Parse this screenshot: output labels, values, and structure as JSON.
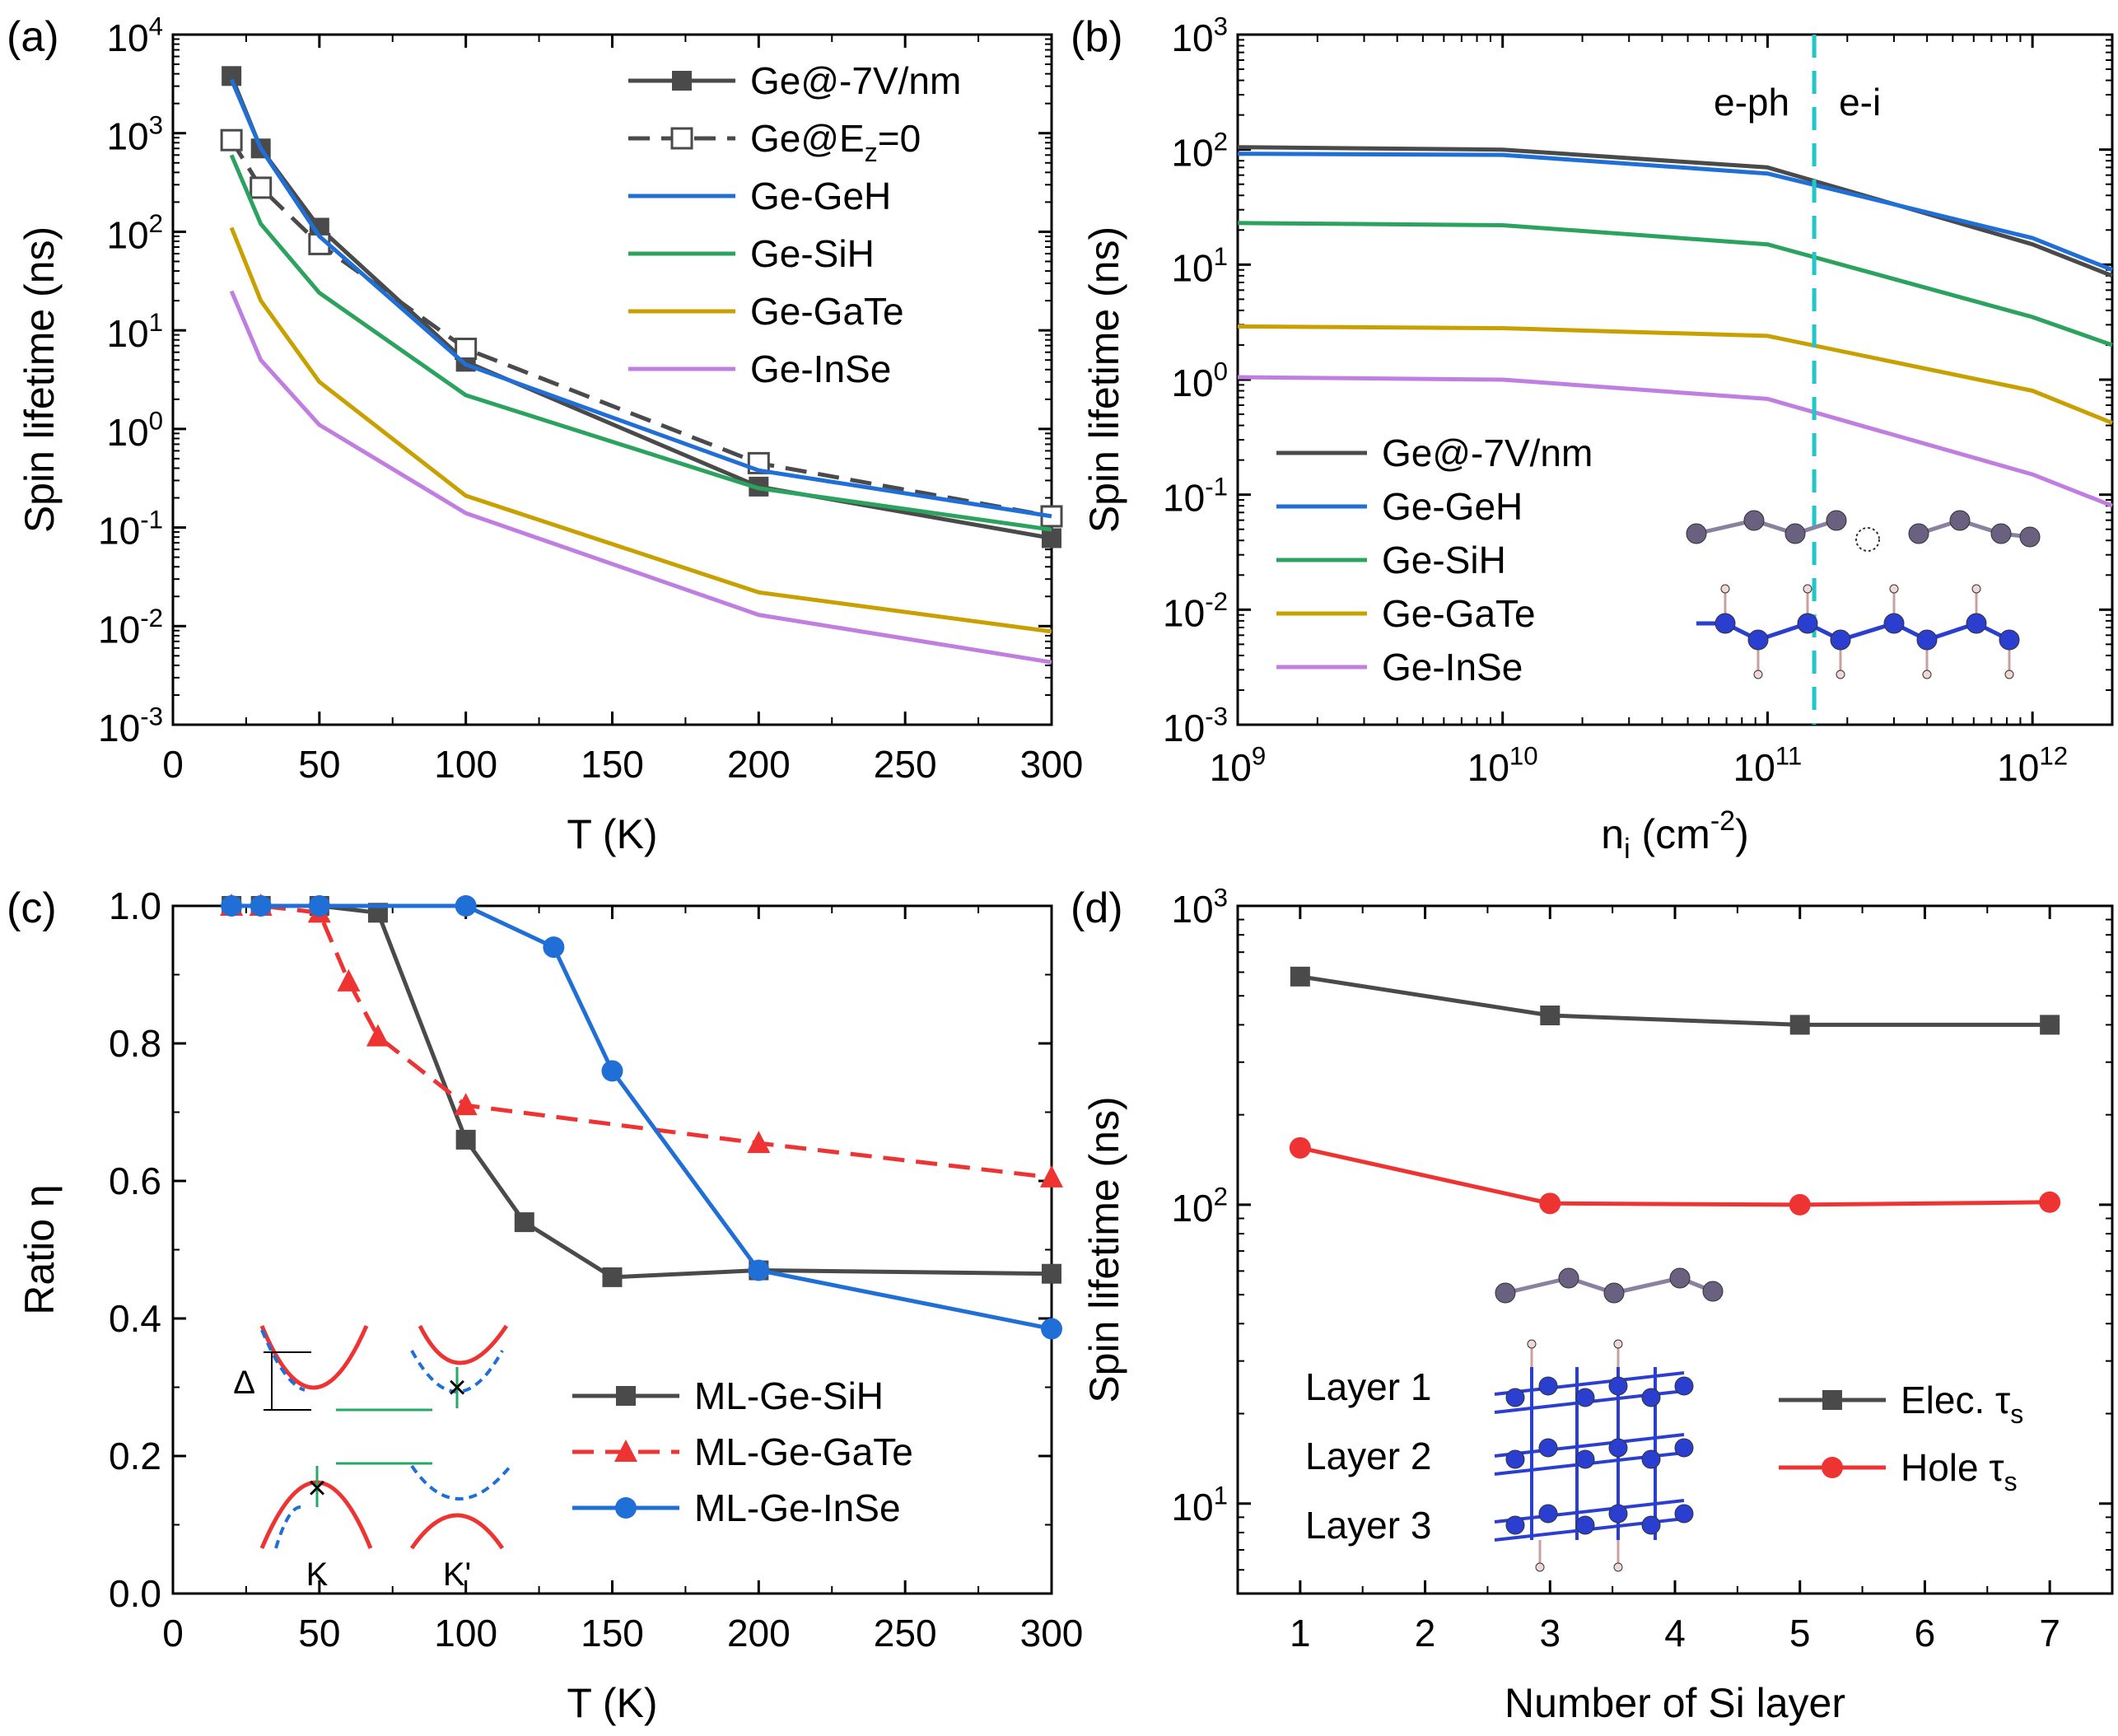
{
  "figure": {
    "panel_labels": [
      "(a)",
      "(b)",
      "(c)",
      "(d)"
    ]
  },
  "chart_data": [
    {
      "panel": "(a)",
      "type": "line",
      "xlabel": "T (K)",
      "ylabel": "Spin lifetime (ns)",
      "xscale": "linear",
      "yscale": "log",
      "xlim": [
        0,
        300
      ],
      "ylim": [
        0.001,
        10000
      ],
      "xticks": [
        0,
        50,
        100,
        150,
        200,
        250,
        300
      ],
      "xticklabels": [
        "0",
        "50",
        "100",
        "150",
        "200",
        "250",
        "300"
      ],
      "yticks": [
        0.001,
        0.01,
        0.1,
        1,
        10,
        100,
        1000,
        10000
      ],
      "yticklabels": [
        {
          "base": "10",
          "exp": "-3"
        },
        {
          "base": "10",
          "exp": "-2"
        },
        {
          "base": "10",
          "exp": "-1"
        },
        {
          "base": "10",
          "exp": "0"
        },
        {
          "base": "10",
          "exp": "1"
        },
        {
          "base": "10",
          "exp": "2"
        },
        {
          "base": "10",
          "exp": "3"
        },
        {
          "base": "10",
          "exp": "4"
        }
      ],
      "legend_position": "top-right",
      "series": [
        {
          "name": "Ge@-7V/nm",
          "color": "#4a4a4a",
          "dash": "solid",
          "marker": "square-filled",
          "x": [
            20,
            30,
            50,
            100,
            200,
            300
          ],
          "y": [
            3800,
            700,
            110,
            4.8,
            0.26,
            0.078
          ]
        },
        {
          "name": "Ge@E_z=0",
          "legend_base": "Ge@E",
          "legend_sub": "z",
          "legend_tail": "=0",
          "color": "#4a4a4a",
          "dash": "dashed",
          "marker": "square-open",
          "x": [
            20,
            30,
            50,
            100,
            200,
            300
          ],
          "y": [
            850,
            280,
            75,
            6.5,
            0.45,
            0.13
          ]
        },
        {
          "name": "Ge-GeH",
          "color": "#1f6fd6",
          "dash": "solid",
          "marker": "none",
          "x": [
            20,
            30,
            50,
            100,
            200,
            300
          ],
          "y": [
            3500,
            700,
            90,
            4.5,
            0.38,
            0.13
          ]
        },
        {
          "name": "Ge-SiH",
          "color": "#2ca25f",
          "dash": "solid",
          "marker": "none",
          "x": [
            20,
            30,
            50,
            100,
            200,
            300
          ],
          "y": [
            600,
            120,
            24,
            2.2,
            0.25,
            0.095
          ]
        },
        {
          "name": "Ge-GaTe",
          "color": "#c8a000",
          "dash": "solid",
          "marker": "none",
          "x": [
            20,
            30,
            50,
            100,
            200,
            300
          ],
          "y": [
            110,
            20,
            3,
            0.21,
            0.022,
            0.0088
          ]
        },
        {
          "name": "Ge-InSe",
          "color": "#c07ee0",
          "dash": "solid",
          "marker": "none",
          "x": [
            20,
            30,
            50,
            100,
            200,
            300
          ],
          "y": [
            25,
            5,
            1.1,
            0.14,
            0.013,
            0.0043
          ]
        }
      ]
    },
    {
      "panel": "(b)",
      "type": "line",
      "xlabel_base": "n",
      "xlabel_sub": "i",
      "xlabel_mid": " (cm",
      "xlabel_sup": "-2",
      "xlabel_tail": ")",
      "ylabel": "Spin lifetime (ns)",
      "xscale": "log",
      "yscale": "log",
      "xlim": [
        1000000000.0,
        2000000000000.0
      ],
      "ylim": [
        0.001,
        1000
      ],
      "xticks": [
        1000000000.0,
        10000000000.0,
        100000000000.0,
        1000000000000.0
      ],
      "xticklabels": [
        {
          "base": "10",
          "exp": "9"
        },
        {
          "base": "10",
          "exp": "10"
        },
        {
          "base": "10",
          "exp": "11"
        },
        {
          "base": "10",
          "exp": "12"
        }
      ],
      "yticks": [
        0.001,
        0.01,
        0.1,
        1,
        10,
        100,
        1000
      ],
      "yticklabels": [
        {
          "base": "10",
          "exp": "-3"
        },
        {
          "base": "10",
          "exp": "-2"
        },
        {
          "base": "10",
          "exp": "-1"
        },
        {
          "base": "10",
          "exp": "0"
        },
        {
          "base": "10",
          "exp": "1"
        },
        {
          "base": "10",
          "exp": "2"
        },
        {
          "base": "10",
          "exp": "3"
        }
      ],
      "vline_x": 150000000000.0,
      "annotations": [
        "e-ph",
        "e-i"
      ],
      "legend_position": "bottom-left",
      "series": [
        {
          "name": "Ge@-7V/nm",
          "color": "#4a4a4a",
          "x": [
            1000000000.0,
            10000000000.0,
            100000000000.0,
            1000000000000.0,
            2000000000000.0
          ],
          "y": [
            105,
            100,
            70,
            15,
            8
          ]
        },
        {
          "name": "Ge-GeH",
          "color": "#1f6fd6",
          "x": [
            1000000000.0,
            10000000000.0,
            100000000000.0,
            1000000000000.0,
            2000000000000.0
          ],
          "y": [
            92,
            90,
            62,
            17,
            9
          ]
        },
        {
          "name": "Ge-SiH",
          "color": "#2ca25f",
          "x": [
            1000000000.0,
            10000000000.0,
            100000000000.0,
            1000000000000.0,
            2000000000000.0
          ],
          "y": [
            23,
            22,
            15,
            3.5,
            2
          ]
        },
        {
          "name": "Ge-GaTe",
          "color": "#c8a000",
          "x": [
            1000000000.0,
            10000000000.0,
            100000000000.0,
            1000000000000.0,
            2000000000000.0
          ],
          "y": [
            2.9,
            2.8,
            2.4,
            0.8,
            0.42
          ]
        },
        {
          "name": "Ge-InSe",
          "color": "#c07ee0",
          "x": [
            1000000000.0,
            10000000000.0,
            100000000000.0,
            1000000000000.0,
            2000000000000.0
          ],
          "y": [
            1.05,
            1.0,
            0.68,
            0.15,
            0.08
          ]
        }
      ]
    },
    {
      "panel": "(c)",
      "type": "line",
      "xlabel": "T (K)",
      "ylabel": "Ratio η",
      "xscale": "linear",
      "yscale": "linear",
      "xlim": [
        0,
        300
      ],
      "ylim": [
        0,
        1.0
      ],
      "xticks": [
        0,
        50,
        100,
        150,
        200,
        250,
        300
      ],
      "xticklabels": [
        "0",
        "50",
        "100",
        "150",
        "200",
        "250",
        "300"
      ],
      "yticks": [
        0,
        0.2,
        0.4,
        0.6,
        0.8,
        1.0
      ],
      "yticklabels": [
        "0.0",
        "0.2",
        "0.4",
        "0.6",
        "0.8",
        "1.0"
      ],
      "legend_position": "bottom-right",
      "inset_labels": {
        "delta": "Δ",
        "k": "K",
        "kprime": "K'"
      },
      "series": [
        {
          "name": "ML-Ge-SiH",
          "color": "#4a4a4a",
          "dash": "solid",
          "marker": "square",
          "x": [
            20,
            30,
            50,
            70,
            100,
            120,
            150,
            200,
            300
          ],
          "y": [
            1.0,
            1.0,
            1.0,
            0.99,
            0.66,
            0.54,
            0.46,
            0.47,
            0.465
          ]
        },
        {
          "name": "ML-Ge-GaTe",
          "color": "#ee3333",
          "dash": "dashed",
          "marker": "triangle",
          "x": [
            20,
            30,
            50,
            60,
            70,
            100,
            200,
            300
          ],
          "y": [
            1.0,
            1.0,
            0.99,
            0.89,
            0.81,
            0.71,
            0.655,
            0.605
          ]
        },
        {
          "name": "ML-Ge-InSe",
          "color": "#1f6fd6",
          "dash": "solid",
          "marker": "circle",
          "x": [
            20,
            30,
            50,
            100,
            130,
            150,
            200,
            300
          ],
          "y": [
            1.0,
            1.0,
            1.0,
            1.0,
            0.94,
            0.76,
            0.47,
            0.385
          ]
        }
      ]
    },
    {
      "panel": "(d)",
      "type": "line",
      "xlabel": "Number of Si layer",
      "ylabel": "Spin lifetime (ns)",
      "xscale": "linear",
      "yscale": "log",
      "xlim": [
        0.5,
        7.5
      ],
      "ylim": [
        5,
        1000
      ],
      "xticks": [
        1,
        2,
        3,
        4,
        5,
        6,
        7
      ],
      "xticklabels": [
        "1",
        "2",
        "3",
        "4",
        "5",
        "6",
        "7"
      ],
      "yticks": [
        10,
        100,
        1000
      ],
      "yticklabels": [
        {
          "base": "10",
          "exp": "1"
        },
        {
          "base": "10",
          "exp": "2"
        },
        {
          "base": "10",
          "exp": "3"
        }
      ],
      "legend_position": "center-right",
      "layer_labels": [
        "Layer 1",
        "Layer 2",
        "Layer 3"
      ],
      "series": [
        {
          "name": "Elec. τs",
          "legend_base": "Elec. ",
          "legend_tau": "τ",
          "legend_sub": "s",
          "color": "#4a4a4a",
          "marker": "square",
          "x": [
            1,
            3,
            5,
            7
          ],
          "y": [
            580,
            430,
            400,
            400
          ]
        },
        {
          "name": "Hole τs",
          "legend_base": "Hole  ",
          "legend_tau": "τ",
          "legend_sub": "s",
          "color": "#ee3333",
          "marker": "circle",
          "x": [
            1,
            3,
            5,
            7
          ],
          "y": [
            155,
            101,
            100,
            102
          ]
        }
      ]
    }
  ]
}
